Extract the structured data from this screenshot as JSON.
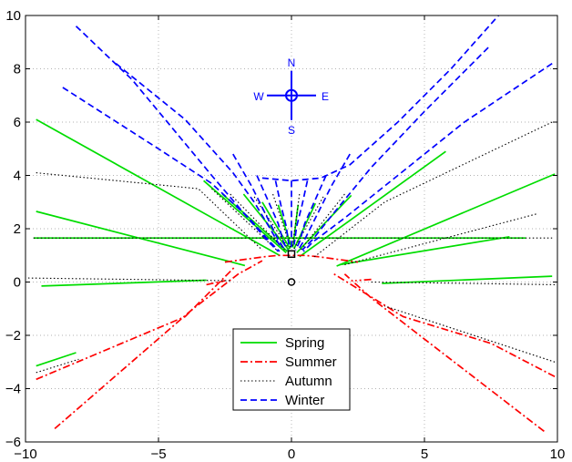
{
  "chart_data": {
    "type": "line",
    "title": "",
    "xlabel": "",
    "ylabel": "",
    "xlim": [
      -10,
      10
    ],
    "ylim": [
      -6,
      10
    ],
    "grid": true,
    "legend_position": "bottom-center",
    "xticks": [
      "−10",
      "−5",
      "0",
      "5",
      "10"
    ],
    "yticks": [
      "−6",
      "−4",
      "−2",
      "0",
      "2",
      "4",
      "6",
      "8",
      "10"
    ],
    "compass": {
      "north": "N",
      "south": "S",
      "east": "E",
      "west": "W",
      "center": [
        0,
        7
      ]
    },
    "markers": [
      {
        "name": "square",
        "x": 0,
        "y": 1.05,
        "color": "#000000"
      },
      {
        "name": "circle",
        "x": 0,
        "y": 0,
        "color": "#000000"
      }
    ],
    "series": [
      {
        "name": "Spring",
        "color": "#00dd00",
        "style": "solid",
        "lines": [
          [
            [
              -9.7,
              1.65
            ],
            [
              8.8,
              1.65
            ]
          ],
          [
            [
              -9.6,
              6.1
            ],
            [
              -0.45,
              1.0
            ]
          ],
          [
            [
              -9.6,
              2.65
            ],
            [
              -1.75,
              0.62
            ]
          ],
          [
            [
              -9.4,
              -0.15
            ],
            [
              -3.2,
              0.07
            ]
          ],
          [
            [
              -3.3,
              3.8
            ],
            [
              -0.2,
              1.1
            ]
          ],
          [
            [
              -2.6,
              3.3
            ],
            [
              -0.15,
              1.15
            ]
          ],
          [
            [
              -1.8,
              3.3
            ],
            [
              -0.1,
              1.2
            ]
          ],
          [
            [
              -1.1,
              3.0
            ],
            [
              -0.05,
              1.25
            ]
          ],
          [
            [
              -0.5,
              2.9
            ],
            [
              0.0,
              1.3
            ]
          ],
          [
            [
              0.25,
              2.9
            ],
            [
              0.05,
              1.3
            ]
          ],
          [
            [
              0.9,
              2.95
            ],
            [
              0.1,
              1.25
            ]
          ],
          [
            [
              2.25,
              3.25
            ],
            [
              0.2,
              1.1
            ]
          ],
          [
            [
              5.8,
              4.9
            ],
            [
              0.3,
              0.95
            ]
          ],
          [
            [
              9.9,
              4.05
            ],
            [
              1.7,
              0.6
            ]
          ],
          [
            [
              8.2,
              1.7
            ],
            [
              1.8,
              0.65
            ]
          ],
          [
            [
              9.8,
              0.22
            ],
            [
              3.4,
              -0.05
            ]
          ],
          [
            [
              -9.6,
              -3.15
            ],
            [
              -8.1,
              -2.65
            ]
          ]
        ]
      },
      {
        "name": "Summer",
        "color": "#ff0000",
        "style": "dashdot",
        "lines": [
          [
            [
              -2.5,
              0.75
            ],
            [
              -1.0,
              0.95
            ],
            [
              -0.5,
              1.0
            ],
            [
              0.0,
              1.0
            ],
            [
              0.5,
              1.0
            ],
            [
              1.0,
              0.95
            ],
            [
              2.5,
              0.75
            ]
          ],
          [
            [
              -8.9,
              -5.5
            ],
            [
              -3.7,
              -1.0
            ],
            [
              -2.0,
              0.3
            ],
            [
              -1.1,
              0.8
            ]
          ],
          [
            [
              -9.6,
              -3.65
            ],
            [
              -4.0,
              -1.3
            ],
            [
              -2.1,
              0.6
            ]
          ],
          [
            [
              -3.2,
              -0.1
            ],
            [
              -2.5,
              0.05
            ]
          ],
          [
            [
              3.0,
              0.1
            ],
            [
              2.4,
              0.05
            ]
          ],
          [
            [
              9.5,
              -5.6
            ],
            [
              5.6,
              -2.6
            ],
            [
              3.0,
              -0.6
            ],
            [
              2.0,
              0.3
            ]
          ],
          [
            [
              9.9,
              -3.55
            ],
            [
              7.5,
              -2.3
            ],
            [
              4.2,
              -1.3
            ],
            [
              1.6,
              0.3
            ]
          ]
        ]
      },
      {
        "name": "Autumn",
        "color": "#000000",
        "style": "dotted",
        "lines": [
          [
            [
              -9.7,
              1.65
            ],
            [
              9.8,
              1.65
            ]
          ],
          [
            [
              -9.6,
              4.1
            ],
            [
              -3.5,
              3.5
            ],
            [
              -1.1,
              1.2
            ]
          ],
          [
            [
              -3.0,
              3.5
            ],
            [
              -0.5,
              1.15
            ]
          ],
          [
            [
              -2.3,
              3.3
            ],
            [
              -0.25,
              1.2
            ]
          ],
          [
            [
              -1.4,
              3.2
            ],
            [
              -0.1,
              1.25
            ]
          ],
          [
            [
              -0.7,
              3.3
            ],
            [
              -0.03,
              1.28
            ]
          ],
          [
            [
              0.3,
              3.3
            ],
            [
              0.03,
              1.28
            ]
          ],
          [
            [
              1.2,
              3.2
            ],
            [
              0.1,
              1.25
            ]
          ],
          [
            [
              2.0,
              3.3
            ],
            [
              0.3,
              1.15
            ]
          ],
          [
            [
              9.8,
              6.0
            ],
            [
              3.5,
              3.0
            ],
            [
              0.8,
              0.9
            ]
          ],
          [
            [
              9.2,
              2.55
            ],
            [
              2.0,
              0.65
            ]
          ],
          [
            [
              -9.9,
              0.15
            ],
            [
              -2.3,
              0.05
            ]
          ],
          [
            [
              9.9,
              -0.1
            ],
            [
              3.0,
              0.0
            ]
          ],
          [
            [
              9.9,
              -3.0
            ],
            [
              3.5,
              -0.9
            ]
          ],
          [
            [
              -9.6,
              -3.4
            ],
            [
              -8.0,
              -2.9
            ]
          ]
        ]
      },
      {
        "name": "Winter",
        "color": "#0000ff",
        "style": "dashed",
        "lines": [
          [
            [
              -1.1,
              3.9
            ],
            [
              0.0,
              3.8
            ],
            [
              1.1,
              3.9
            ],
            [
              2.2,
              4.4
            ],
            [
              4.0,
              6.0
            ],
            [
              6.0,
              8.0
            ],
            [
              8.5,
              10.8
            ]
          ],
          [
            [
              -8.6,
              7.3
            ],
            [
              -5.0,
              5.0
            ],
            [
              -3.0,
              3.7
            ],
            [
              -1.6,
              2.4
            ],
            [
              -0.8,
              1.5
            ],
            [
              -0.45,
              1.15
            ]
          ],
          [
            [
              -8.1,
              9.6
            ],
            [
              -6.0,
              7.6
            ],
            [
              -4.5,
              5.8
            ],
            [
              -3.0,
              4.0
            ],
            [
              -1.8,
              2.6
            ],
            [
              -0.9,
              1.55
            ],
            [
              -0.5,
              1.15
            ]
          ],
          [
            [
              -6.6,
              8.2
            ],
            [
              -4.0,
              6.1
            ],
            [
              -2.2,
              4.1
            ],
            [
              -1.4,
              3.0
            ],
            [
              -0.8,
              2.0
            ],
            [
              -0.4,
              1.3
            ]
          ],
          [
            [
              -2.2,
              4.8
            ],
            [
              -1.5,
              3.6
            ],
            [
              -0.9,
              2.4
            ],
            [
              -0.5,
              1.6
            ],
            [
              -0.25,
              1.2
            ]
          ],
          [
            [
              -1.3,
              4.0
            ],
            [
              -0.9,
              3.1
            ],
            [
              -0.5,
              2.2
            ],
            [
              -0.3,
              1.5
            ],
            [
              -0.15,
              1.2
            ]
          ],
          [
            [
              -0.6,
              3.8
            ],
            [
              -0.4,
              2.9
            ],
            [
              -0.2,
              2.1
            ],
            [
              -0.1,
              1.4
            ]
          ],
          [
            [
              0.0,
              3.8
            ],
            [
              0.0,
              1.3
            ]
          ],
          [
            [
              0.6,
              3.8
            ],
            [
              0.4,
              2.9
            ],
            [
              0.2,
              2.1
            ],
            [
              0.1,
              1.4
            ]
          ],
          [
            [
              1.3,
              4.0
            ],
            [
              0.9,
              3.1
            ],
            [
              0.5,
              2.2
            ],
            [
              0.3,
              1.5
            ],
            [
              0.15,
              1.2
            ]
          ],
          [
            [
              2.2,
              4.8
            ],
            [
              1.5,
              3.6
            ],
            [
              0.9,
              2.4
            ],
            [
              0.5,
              1.6
            ],
            [
              0.25,
              1.2
            ]
          ],
          [
            [
              9.8,
              8.2
            ],
            [
              6.5,
              6.0
            ],
            [
              4.0,
              4.0
            ],
            [
              2.0,
              2.4
            ],
            [
              0.8,
              1.5
            ],
            [
              0.45,
              1.15
            ]
          ],
          [
            [
              7.4,
              8.8
            ],
            [
              5.0,
              6.4
            ],
            [
              3.0,
              4.3
            ],
            [
              1.6,
              2.6
            ],
            [
              0.8,
              1.6
            ],
            [
              0.4,
              1.2
            ]
          ]
        ]
      }
    ]
  }
}
